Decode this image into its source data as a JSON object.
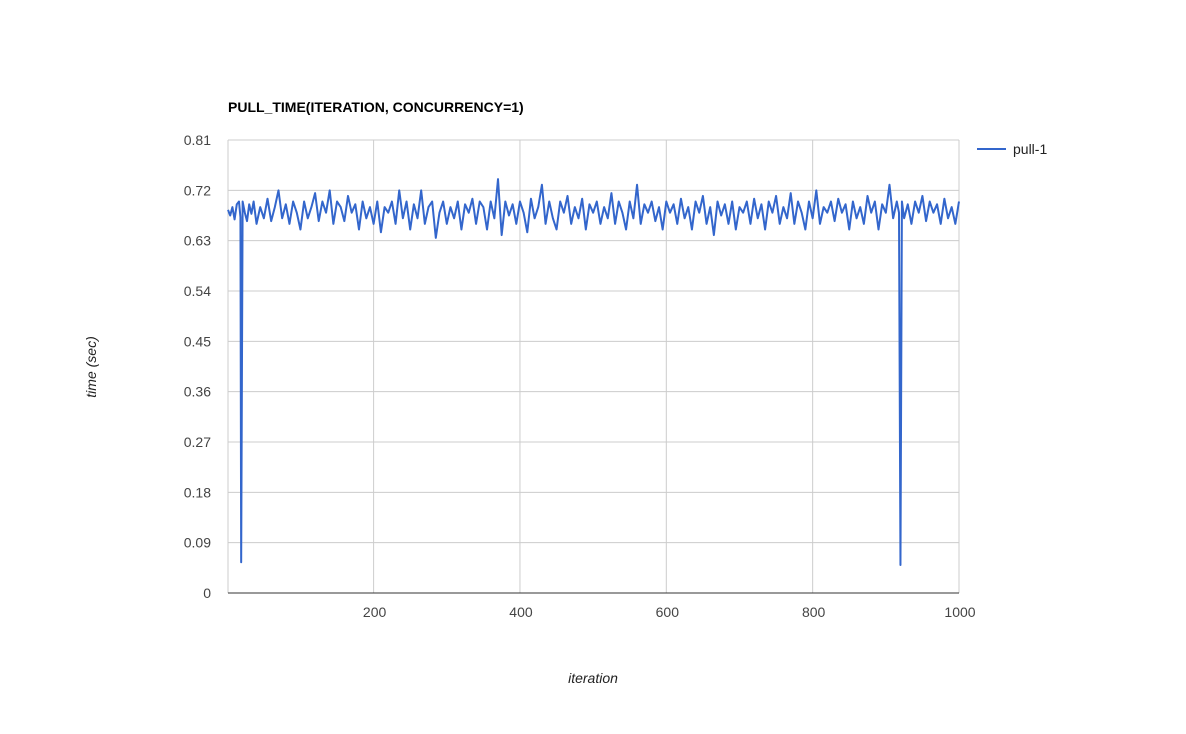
{
  "chart_data": {
    "type": "line",
    "title": "PULL_TIME(ITERATION, CONCURRENCY=1)",
    "xlabel": "iteration",
    "ylabel": "time (sec)",
    "xlim": [
      1,
      1000
    ],
    "ylim": [
      0,
      0.81
    ],
    "x_ticks": [
      "200",
      "400",
      "600",
      "800",
      "1000"
    ],
    "x_tick_values": [
      200,
      400,
      600,
      800,
      1000
    ],
    "y_ticks": [
      "0",
      "0.09",
      "0.18",
      "0.27",
      "0.36",
      "0.45",
      "0.54",
      "0.63",
      "0.72",
      "0.81"
    ],
    "y_tick_values": [
      0,
      0.09,
      0.18,
      0.27,
      0.36,
      0.45,
      0.54,
      0.63,
      0.72,
      0.81
    ],
    "grid": true,
    "legend": "right",
    "series": [
      {
        "name": "pull-1",
        "color": "#3366cc",
        "points": [
          [
            1,
            0.685
          ],
          [
            4,
            0.675
          ],
          [
            7,
            0.69
          ],
          [
            10,
            0.668
          ],
          [
            13,
            0.695
          ],
          [
            16,
            0.7
          ],
          [
            18,
            0.672
          ],
          [
            19,
            0.055
          ],
          [
            21,
            0.7
          ],
          [
            24,
            0.68
          ],
          [
            27,
            0.665
          ],
          [
            30,
            0.695
          ],
          [
            33,
            0.678
          ],
          [
            36,
            0.7
          ],
          [
            40,
            0.66
          ],
          [
            45,
            0.69
          ],
          [
            50,
            0.67
          ],
          [
            55,
            0.705
          ],
          [
            60,
            0.665
          ],
          [
            65,
            0.69
          ],
          [
            70,
            0.72
          ],
          [
            75,
            0.67
          ],
          [
            80,
            0.695
          ],
          [
            85,
            0.66
          ],
          [
            90,
            0.7
          ],
          [
            95,
            0.68
          ],
          [
            100,
            0.65
          ],
          [
            105,
            0.7
          ],
          [
            110,
            0.67
          ],
          [
            115,
            0.69
          ],
          [
            120,
            0.715
          ],
          [
            125,
            0.665
          ],
          [
            130,
            0.7
          ],
          [
            135,
            0.68
          ],
          [
            140,
            0.72
          ],
          [
            145,
            0.66
          ],
          [
            150,
            0.7
          ],
          [
            155,
            0.69
          ],
          [
            160,
            0.665
          ],
          [
            165,
            0.71
          ],
          [
            170,
            0.68
          ],
          [
            175,
            0.695
          ],
          [
            180,
            0.65
          ],
          [
            185,
            0.7
          ],
          [
            190,
            0.67
          ],
          [
            195,
            0.69
          ],
          [
            200,
            0.66
          ],
          [
            205,
            0.7
          ],
          [
            210,
            0.645
          ],
          [
            215,
            0.69
          ],
          [
            220,
            0.68
          ],
          [
            225,
            0.7
          ],
          [
            230,
            0.66
          ],
          [
            235,
            0.72
          ],
          [
            240,
            0.67
          ],
          [
            245,
            0.7
          ],
          [
            250,
            0.65
          ],
          [
            255,
            0.695
          ],
          [
            260,
            0.67
          ],
          [
            265,
            0.72
          ],
          [
            270,
            0.66
          ],
          [
            275,
            0.69
          ],
          [
            280,
            0.7
          ],
          [
            285,
            0.635
          ],
          [
            290,
            0.68
          ],
          [
            295,
            0.7
          ],
          [
            300,
            0.66
          ],
          [
            305,
            0.69
          ],
          [
            310,
            0.67
          ],
          [
            315,
            0.7
          ],
          [
            320,
            0.65
          ],
          [
            325,
            0.695
          ],
          [
            330,
            0.68
          ],
          [
            335,
            0.705
          ],
          [
            340,
            0.66
          ],
          [
            345,
            0.7
          ],
          [
            350,
            0.69
          ],
          [
            355,
            0.65
          ],
          [
            360,
            0.7
          ],
          [
            365,
            0.67
          ],
          [
            370,
            0.74
          ],
          [
            375,
            0.64
          ],
          [
            380,
            0.7
          ],
          [
            385,
            0.675
          ],
          [
            390,
            0.695
          ],
          [
            395,
            0.66
          ],
          [
            400,
            0.7
          ],
          [
            405,
            0.68
          ],
          [
            410,
            0.645
          ],
          [
            415,
            0.705
          ],
          [
            420,
            0.67
          ],
          [
            425,
            0.69
          ],
          [
            430,
            0.73
          ],
          [
            435,
            0.66
          ],
          [
            440,
            0.7
          ],
          [
            445,
            0.67
          ],
          [
            450,
            0.65
          ],
          [
            455,
            0.7
          ],
          [
            460,
            0.68
          ],
          [
            465,
            0.71
          ],
          [
            470,
            0.66
          ],
          [
            475,
            0.69
          ],
          [
            480,
            0.67
          ],
          [
            485,
            0.705
          ],
          [
            490,
            0.65
          ],
          [
            495,
            0.695
          ],
          [
            500,
            0.68
          ],
          [
            505,
            0.7
          ],
          [
            510,
            0.66
          ],
          [
            515,
            0.69
          ],
          [
            520,
            0.67
          ],
          [
            525,
            0.715
          ],
          [
            530,
            0.66
          ],
          [
            535,
            0.7
          ],
          [
            540,
            0.68
          ],
          [
            545,
            0.65
          ],
          [
            550,
            0.7
          ],
          [
            555,
            0.67
          ],
          [
            560,
            0.73
          ],
          [
            565,
            0.66
          ],
          [
            570,
            0.695
          ],
          [
            575,
            0.68
          ],
          [
            580,
            0.7
          ],
          [
            585,
            0.665
          ],
          [
            590,
            0.69
          ],
          [
            595,
            0.65
          ],
          [
            600,
            0.7
          ],
          [
            605,
            0.68
          ],
          [
            610,
            0.695
          ],
          [
            615,
            0.66
          ],
          [
            620,
            0.705
          ],
          [
            625,
            0.67
          ],
          [
            630,
            0.69
          ],
          [
            635,
            0.65
          ],
          [
            640,
            0.7
          ],
          [
            645,
            0.68
          ],
          [
            650,
            0.71
          ],
          [
            655,
            0.66
          ],
          [
            660,
            0.69
          ],
          [
            665,
            0.64
          ],
          [
            670,
            0.7
          ],
          [
            675,
            0.675
          ],
          [
            680,
            0.695
          ],
          [
            685,
            0.66
          ],
          [
            690,
            0.7
          ],
          [
            695,
            0.65
          ],
          [
            700,
            0.69
          ],
          [
            705,
            0.68
          ],
          [
            710,
            0.7
          ],
          [
            715,
            0.66
          ],
          [
            720,
            0.705
          ],
          [
            725,
            0.67
          ],
          [
            730,
            0.695
          ],
          [
            735,
            0.65
          ],
          [
            740,
            0.7
          ],
          [
            745,
            0.68
          ],
          [
            750,
            0.71
          ],
          [
            755,
            0.66
          ],
          [
            760,
            0.69
          ],
          [
            765,
            0.67
          ],
          [
            770,
            0.715
          ],
          [
            775,
            0.66
          ],
          [
            780,
            0.7
          ],
          [
            785,
            0.68
          ],
          [
            790,
            0.65
          ],
          [
            795,
            0.7
          ],
          [
            800,
            0.67
          ],
          [
            805,
            0.72
          ],
          [
            810,
            0.66
          ],
          [
            815,
            0.69
          ],
          [
            820,
            0.68
          ],
          [
            825,
            0.7
          ],
          [
            830,
            0.665
          ],
          [
            835,
            0.705
          ],
          [
            840,
            0.68
          ],
          [
            845,
            0.695
          ],
          [
            850,
            0.65
          ],
          [
            855,
            0.7
          ],
          [
            860,
            0.67
          ],
          [
            865,
            0.69
          ],
          [
            870,
            0.66
          ],
          [
            875,
            0.71
          ],
          [
            880,
            0.68
          ],
          [
            885,
            0.7
          ],
          [
            890,
            0.65
          ],
          [
            895,
            0.695
          ],
          [
            900,
            0.68
          ],
          [
            905,
            0.73
          ],
          [
            910,
            0.67
          ],
          [
            915,
            0.7
          ],
          [
            918,
            0.68
          ],
          [
            920,
            0.05
          ],
          [
            922,
            0.7
          ],
          [
            925,
            0.67
          ],
          [
            930,
            0.695
          ],
          [
            935,
            0.66
          ],
          [
            940,
            0.7
          ],
          [
            945,
            0.68
          ],
          [
            950,
            0.71
          ],
          [
            955,
            0.665
          ],
          [
            960,
            0.7
          ],
          [
            965,
            0.68
          ],
          [
            970,
            0.695
          ],
          [
            975,
            0.66
          ],
          [
            980,
            0.705
          ],
          [
            985,
            0.67
          ],
          [
            990,
            0.69
          ],
          [
            995,
            0.66
          ],
          [
            1000,
            0.7
          ]
        ]
      }
    ]
  }
}
